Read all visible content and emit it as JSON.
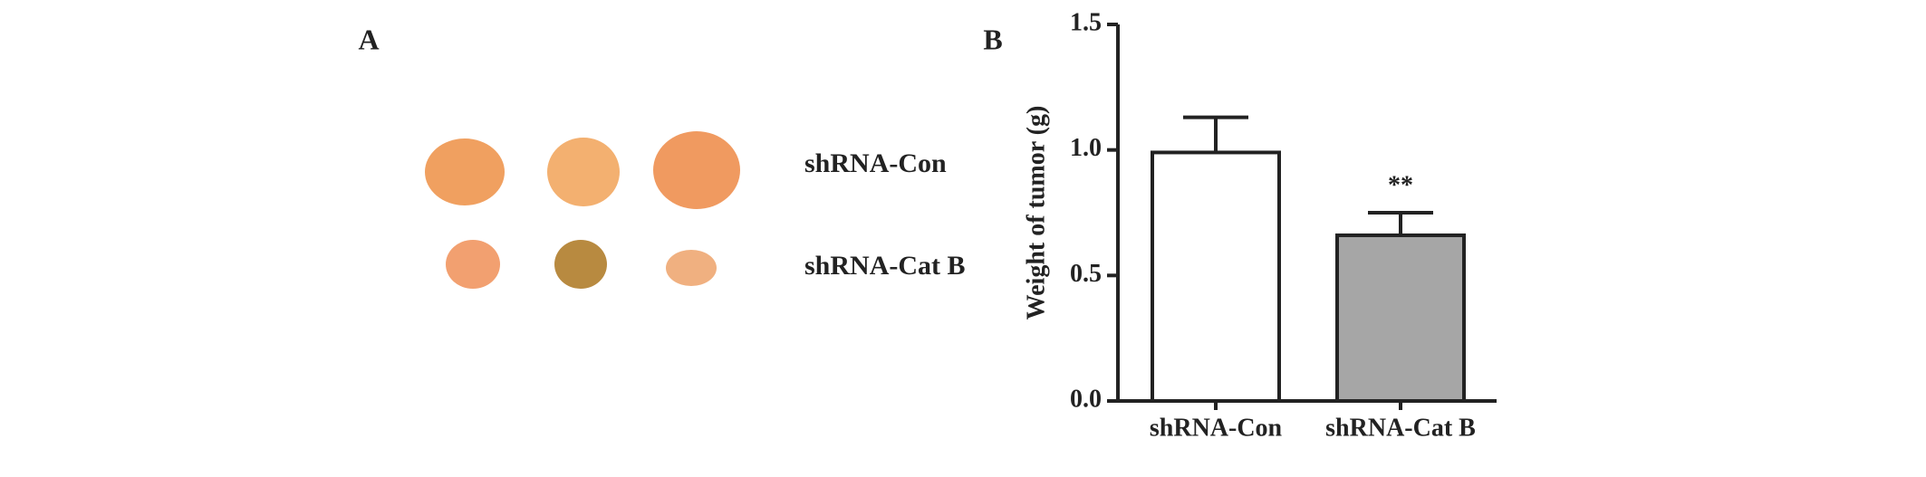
{
  "panel_a": {
    "label": "A",
    "rows": [
      "shRNA-Con",
      "shRNA-Cat B"
    ]
  },
  "chart_data": {
    "type": "bar",
    "panel_label": "B",
    "y_label": "Weight of tumor (g)",
    "categories": [
      "shRNA-Con",
      "shRNA-Cat B"
    ],
    "values": [
      0.99,
      0.66
    ],
    "errors": [
      0.14,
      0.09
    ],
    "colors": [
      "#ffffff",
      "#a6a6a6"
    ],
    "annotation": "**",
    "ylim": [
      0,
      1.5
    ],
    "yticks": [
      {
        "value": 0,
        "label": "0.0"
      },
      0.5,
      {
        "value": 1,
        "label": "1.0"
      },
      1.5
    ]
  }
}
